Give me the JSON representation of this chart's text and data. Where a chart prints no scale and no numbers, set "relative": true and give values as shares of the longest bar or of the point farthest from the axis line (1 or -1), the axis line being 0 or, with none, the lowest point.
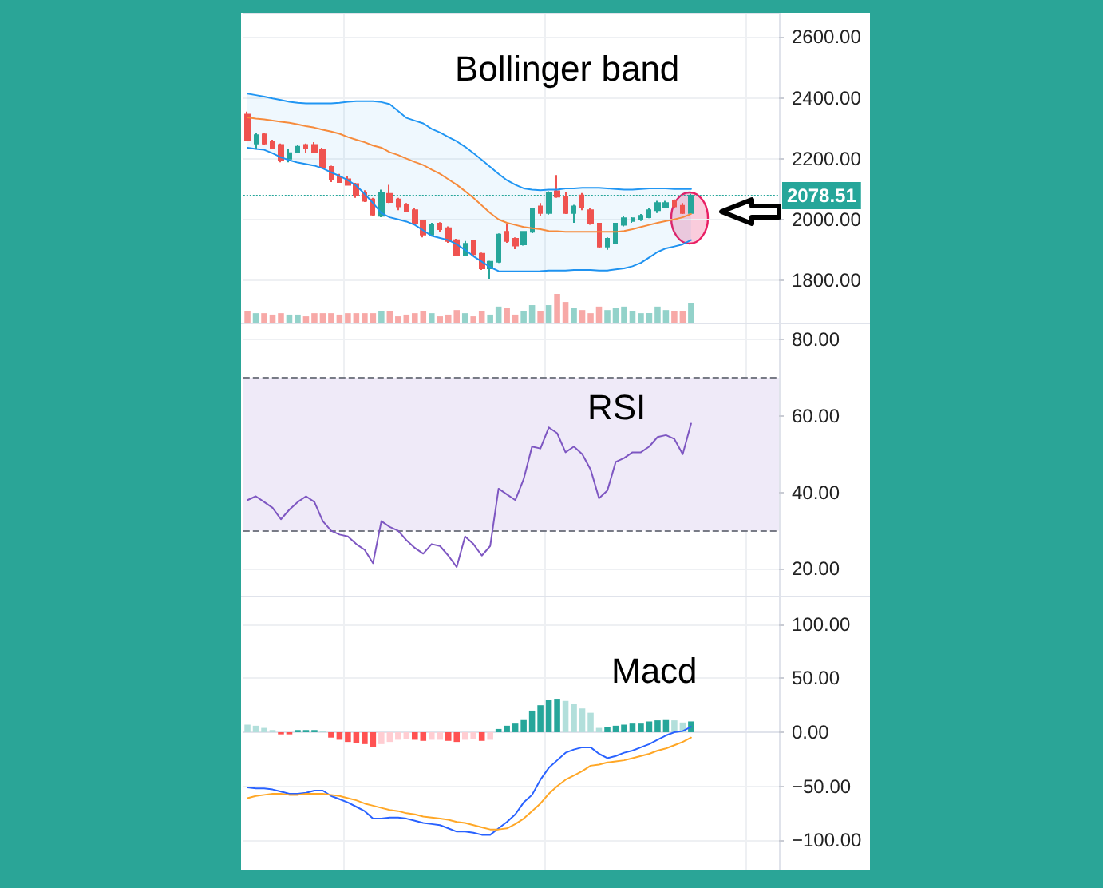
{
  "chart_data": [
    {
      "type": "candlestick",
      "title": "Bollinger band",
      "categories": [
        null,
        null,
        null,
        null,
        null,
        null,
        null,
        null,
        null,
        null,
        null,
        null,
        null,
        null,
        null,
        null,
        null,
        null,
        null,
        null,
        null,
        null,
        null,
        null,
        null,
        null,
        null,
        null,
        null,
        null,
        null,
        null,
        null,
        null,
        null,
        null,
        null,
        null,
        null,
        null,
        null,
        null,
        null,
        null,
        null,
        null,
        null,
        null,
        null,
        null,
        null,
        null,
        null,
        null
      ],
      "ohlc": [
        [
          2345,
          2355,
          2258,
          2262
        ],
        [
          2250,
          2284,
          2232,
          2277
        ],
        [
          2280,
          2286,
          2245,
          2250
        ],
        [
          2257,
          2262,
          2232,
          2236
        ],
        [
          2245,
          2250,
          2188,
          2196
        ],
        [
          2200,
          2232,
          2188,
          2218
        ],
        [
          2221,
          2245,
          2218,
          2239
        ],
        [
          2245,
          2250,
          2218,
          2236
        ],
        [
          2245,
          2254,
          2218,
          2223
        ],
        [
          2230,
          2236,
          2168,
          2170
        ],
        [
          2173,
          2177,
          2123,
          2132
        ],
        [
          2141,
          2150,
          2120,
          2123
        ],
        [
          2132,
          2143,
          2111,
          2114
        ],
        [
          2116,
          2120,
          2071,
          2079
        ],
        [
          2089,
          2096,
          2057,
          2061
        ],
        [
          2066,
          2071,
          2012,
          2016
        ],
        [
          2012,
          2098,
          2007,
          2089
        ],
        [
          2084,
          2114,
          2054,
          2057
        ],
        [
          2066,
          2071,
          2030,
          2043
        ],
        [
          2048,
          2054,
          2025,
          2027
        ],
        [
          2030,
          2039,
          1986,
          1989
        ],
        [
          1995,
          1998,
          1941,
          1950
        ],
        [
          1950,
          1989,
          1945,
          1982
        ],
        [
          1986,
          1991,
          1959,
          1968
        ],
        [
          1971,
          1977,
          1923,
          1929
        ],
        [
          1932,
          1936,
          1879,
          1882
        ],
        [
          1882,
          1929,
          1879,
          1920
        ],
        [
          1929,
          1932,
          1879,
          1886
        ],
        [
          1887,
          1891,
          1834,
          1839
        ],
        [
          1839,
          1864,
          1802,
          1861
        ],
        [
          1861,
          1954,
          1857,
          1950
        ],
        [
          1959,
          1986,
          1923,
          1929
        ],
        [
          1936,
          1941,
          1902,
          1914
        ],
        [
          1918,
          1962,
          1914,
          1959
        ],
        [
          1959,
          2039,
          1955,
          2036
        ],
        [
          2043,
          2054,
          2012,
          2021
        ],
        [
          2021,
          2093,
          2016,
          2087
        ],
        [
          2093,
          2146,
          2071,
          2075
        ],
        [
          2075,
          2089,
          2018,
          2021
        ],
        [
          2021,
          2048,
          1989,
          2043
        ],
        [
          2079,
          2087,
          2030,
          2039
        ],
        [
          2030,
          2036,
          1982,
          1986
        ],
        [
          1986,
          1989,
          1905,
          1911
        ],
        [
          1911,
          1941,
          1900,
          1936
        ],
        [
          1923,
          1989,
          1918,
          1986
        ],
        [
          1982,
          2012,
          1977,
          2004
        ],
        [
          1995,
          2007,
          1989,
          2004
        ],
        [
          2000,
          2018,
          1995,
          2012
        ],
        [
          2007,
          2036,
          2004,
          2030
        ],
        [
          2030,
          2061,
          2021,
          2054
        ],
        [
          2039,
          2061,
          2036,
          2054
        ],
        [
          2061,
          2066,
          2039,
          2043
        ],
        [
          2045,
          2054,
          2018,
          2021
        ],
        [
          2021,
          2084,
          2018,
          2078.51
        ]
      ],
      "colors": [
        "#ef5350",
        "#26a69a",
        "#ef5350",
        "#ef5350",
        "#ef5350",
        "#26a69a",
        "#26a69a",
        "#ef5350",
        "#ef5350",
        "#ef5350",
        "#ef5350",
        "#ef5350",
        "#ef5350",
        "#ef5350",
        "#ef5350",
        "#ef5350",
        "#26a69a",
        "#ef5350",
        "#ef5350",
        "#ef5350",
        "#ef5350",
        "#ef5350",
        "#26a69a",
        "#ef5350",
        "#ef5350",
        "#ef5350",
        "#26a69a",
        "#ef5350",
        "#ef5350",
        "#26a69a",
        "#26a69a",
        "#ef5350",
        "#ef5350",
        "#26a69a",
        "#26a69a",
        "#ef5350",
        "#26a69a",
        "#ef5350",
        "#ef5350",
        "#26a69a",
        "#ef5350",
        "#ef5350",
        "#ef5350",
        "#26a69a",
        "#26a69a",
        "#26a69a",
        "#26a69a",
        "#26a69a",
        "#26a69a",
        "#26a69a",
        "#26a69a",
        "#ef5350",
        "#ef5350",
        "#26a69a"
      ],
      "series": [
        {
          "type": "line",
          "color": "#2196f3",
          "values": [
            2414,
            2409,
            2404,
            2398,
            2393,
            2387,
            2384,
            2382,
            2382,
            2382,
            2382,
            2384,
            2387,
            2389,
            2389,
            2389,
            2386,
            2379,
            2357,
            2334,
            2325,
            2316,
            2298,
            2286,
            2271,
            2257,
            2239,
            2218,
            2196,
            2173,
            2150,
            2129,
            2114,
            2102,
            2098,
            2096,
            2098,
            2098,
            2102,
            2102,
            2104,
            2104,
            2104,
            2102,
            2100,
            2098,
            2098,
            2100,
            2102,
            2102,
            2102,
            2100,
            2100,
            2100
          ]
        },
        {
          "type": "line",
          "color": "#f68b3c",
          "values": [
            2336,
            2332,
            2329,
            2325,
            2321,
            2318,
            2313,
            2307,
            2302,
            2295,
            2289,
            2282,
            2271,
            2262,
            2254,
            2243,
            2236,
            2221,
            2212,
            2200,
            2189,
            2179,
            2164,
            2150,
            2132,
            2114,
            2093,
            2071,
            2046,
            2021,
            2000,
            1989,
            1982,
            1975,
            1971,
            1968,
            1962,
            1961,
            1959,
            1959,
            1959,
            1959,
            1959,
            1959,
            1959,
            1962,
            1968,
            1975,
            1982,
            1989,
            1995,
            2000,
            2007,
            2018
          ],
          "lower": [
            2236,
            2232,
            2229,
            2218,
            2204,
            2195,
            2187,
            2182,
            2177,
            2168,
            2155,
            2143,
            2129,
            2111,
            2084,
            2054,
            2021,
            2007,
            2000,
            1993,
            1982,
            1964,
            1946,
            1939,
            1932,
            1918,
            1900,
            1879,
            1861,
            1843,
            1830,
            1829,
            1829,
            1829,
            1829,
            1830,
            1832,
            1832,
            1832,
            1834,
            1834,
            1834,
            1832,
            1832,
            1836,
            1839,
            1846,
            1857,
            1875,
            1893,
            1905,
            1911,
            1918,
            1932
          ],
          "upper": [
            2414,
            2409,
            2404,
            2398,
            2393,
            2387,
            2384,
            2382,
            2382,
            2382,
            2382,
            2384,
            2387,
            2389,
            2389,
            2389,
            2386,
            2379,
            2357,
            2334,
            2325,
            2316,
            2298,
            2286,
            2271,
            2257,
            2239,
            2218,
            2196,
            2173,
            2150,
            2129,
            2114,
            2102,
            2098,
            2096,
            2098,
            2098,
            2102,
            2102,
            2104,
            2104,
            2104,
            2102,
            2100,
            2098,
            2098,
            2100,
            2102,
            2102,
            2102,
            2100,
            2100,
            2100
          ]
        },
        {
          "type": "line",
          "color": "#1e92f0",
          "values": [
            2236,
            2232,
            2229,
            2218,
            2204,
            2195,
            2187,
            2182,
            2177,
            2168,
            2155,
            2143,
            2129,
            2111,
            2084,
            2054,
            2021,
            2007,
            2000,
            1993,
            1982,
            1964,
            1946,
            1939,
            1932,
            1918,
            1900,
            1879,
            1861,
            1843,
            1830,
            1829,
            1829,
            1829,
            1829,
            1830,
            1832,
            1832,
            1832,
            1834,
            1834,
            1834,
            1832,
            1832,
            1836,
            1839,
            1846,
            1857,
            1875,
            1893,
            1905,
            1911,
            1918,
            1932
          ]
        }
      ],
      "ylim": [
        1755,
        2680
      ],
      "yticks": [
        {
          "value": 1800,
          "label": "1800.00"
        },
        {
          "value": 2000,
          "label": "2000.00"
        },
        {
          "value": 2200,
          "label": "2200.00"
        },
        {
          "value": 2400,
          "label": "2400.00"
        },
        {
          "value": 2600,
          "label": "2600.00"
        }
      ],
      "ref_lines": [
        {
          "axis": "y",
          "value": 2078.51,
          "label": "2078.51",
          "color": "#26a69a",
          "line_style": "dotted"
        }
      ],
      "grid": true,
      "tick_labels": "y"
    },
    {
      "type": "bar",
      "categories": [
        null,
        null,
        null,
        null,
        null,
        null,
        null,
        null,
        null,
        null,
        null,
        null,
        null,
        null,
        null,
        null,
        null,
        null,
        null,
        null,
        null,
        null,
        null,
        null,
        null,
        null,
        null,
        null,
        null,
        null,
        null,
        null,
        null,
        null,
        null,
        null,
        null,
        null,
        null,
        null,
        null,
        null,
        null,
        null,
        null,
        null,
        null,
        null,
        null,
        null,
        null,
        null,
        null,
        null
      ],
      "values": [
        0.39,
        0.33,
        0.33,
        0.28,
        0.33,
        0.28,
        0.28,
        0.22,
        0.33,
        0.33,
        0.33,
        0.28,
        0.33,
        0.33,
        0.33,
        0.33,
        0.39,
        0.39,
        0.22,
        0.28,
        0.33,
        0.39,
        0.33,
        0.22,
        0.28,
        0.44,
        0.33,
        0.22,
        0.39,
        0.28,
        0.56,
        0.5,
        0.28,
        0.39,
        0.61,
        0.39,
        0.61,
        1,
        0.72,
        0.5,
        0.44,
        0.33,
        0.56,
        0.44,
        0.5,
        0.56,
        0.39,
        0.33,
        0.33,
        0.56,
        0.44,
        0.39,
        0.39,
        0.67
      ],
      "colors": [
        "#f7a9a7",
        "#93d2ca",
        "#f7a9a7",
        "#f7a9a7",
        "#f7a9a7",
        "#93d2ca",
        "#93d2ca",
        "#f7a9a7",
        "#f7a9a7",
        "#f7a9a7",
        "#f7a9a7",
        "#f7a9a7",
        "#f7a9a7",
        "#f7a9a7",
        "#f7a9a7",
        "#f7a9a7",
        "#93d2ca",
        "#f7a9a7",
        "#f7a9a7",
        "#f7a9a7",
        "#f7a9a7",
        "#f7a9a7",
        "#93d2ca",
        "#f7a9a7",
        "#f7a9a7",
        "#f7a9a7",
        "#93d2ca",
        "#f7a9a7",
        "#f7a9a7",
        "#93d2ca",
        "#93d2ca",
        "#f7a9a7",
        "#f7a9a7",
        "#93d2ca",
        "#93d2ca",
        "#f7a9a7",
        "#93d2ca",
        "#f7a9a7",
        "#f7a9a7",
        "#93d2ca",
        "#f7a9a7",
        "#f7a9a7",
        "#f7a9a7",
        "#93d2ca",
        "#93d2ca",
        "#93d2ca",
        "#93d2ca",
        "#93d2ca",
        "#93d2ca",
        "#93d2ca",
        "#93d2ca",
        "#f7a9a7",
        "#f7a9a7",
        "#93d2ca"
      ],
      "relative": true,
      "grid": "x",
      "tick_labels": false
    },
    {
      "type": "line",
      "title": "RSI",
      "categories": [
        null,
        null,
        null,
        null,
        null,
        null,
        null,
        null,
        null,
        null,
        null,
        null,
        null,
        null,
        null,
        null,
        null,
        null,
        null,
        null,
        null,
        null,
        null,
        null,
        null,
        null,
        null,
        null,
        null,
        null,
        null,
        null,
        null,
        null,
        null,
        null,
        null,
        null,
        null,
        null,
        null,
        null,
        null,
        null,
        null,
        null,
        null,
        null,
        null,
        null,
        null,
        null,
        null,
        null
      ],
      "series": [
        {
          "color": "#7e57c2",
          "values": [
            38,
            39,
            37.5,
            36,
            33,
            35.5,
            37.5,
            39,
            37.5,
            32.5,
            30,
            29,
            28.5,
            26.5,
            25,
            21.5,
            32.5,
            31,
            30,
            27.5,
            25.5,
            24,
            26.5,
            26,
            23.5,
            20.5,
            28.5,
            26.5,
            23.5,
            26,
            41,
            39.5,
            38,
            43.5,
            52,
            51.5,
            57,
            55.5,
            50.5,
            52,
            50,
            46,
            38.5,
            40.5,
            48,
            49,
            50.5,
            50.5,
            52,
            54.5,
            55,
            54,
            50,
            58
          ]
        }
      ],
      "ylim": [
        13,
        84
      ],
      "yticks": [
        {
          "value": 20,
          "label": "20.00"
        },
        {
          "value": 40,
          "label": "40.00"
        },
        {
          "value": 60,
          "label": "60.00"
        },
        {
          "value": 80,
          "label": "80.00"
        }
      ],
      "bands": [
        {
          "axis": "y",
          "from": 30,
          "to": 70,
          "color": "#efeaf8"
        }
      ],
      "ref_lines": [
        {
          "axis": "y",
          "value": 70,
          "color": "#787b86",
          "line_style": "dashed"
        },
        {
          "axis": "y",
          "value": 30,
          "color": "#787b86",
          "line_style": "dashed"
        }
      ],
      "grid": true,
      "tick_labels": "y"
    },
    {
      "type": "bar",
      "title": "Macd",
      "categories": [
        null,
        null,
        null,
        null,
        null,
        null,
        null,
        null,
        null,
        null,
        null,
        null,
        null,
        null,
        null,
        null,
        null,
        null,
        null,
        null,
        null,
        null,
        null,
        null,
        null,
        null,
        null,
        null,
        null,
        null,
        null,
        null,
        null,
        null,
        null,
        null,
        null,
        null,
        null,
        null,
        null,
        null,
        null,
        null,
        null,
        null,
        null,
        null,
        null,
        null,
        null,
        null,
        null,
        null
      ],
      "series": [
        {
          "colors": [
            "#b2dfdb",
            "#b2dfdb",
            "#b2dfdb",
            "#b2dfdb",
            "#ff5252",
            "#ff5252",
            "#26a69a",
            "#26a69a",
            "#26a69a",
            "#b2dfdb",
            "#ff5252",
            "#ff5252",
            "#ff5252",
            "#ff5252",
            "#ff5252",
            "#ff5252",
            "#ffcdd2",
            "#ffcdd2",
            "#ffcdd2",
            "#ffcdd2",
            "#ff5252",
            "#ff5252",
            "#ffcdd2",
            "#ffcdd2",
            "#ff5252",
            "#ff5252",
            "#ffcdd2",
            "#ffcdd2",
            "#ff5252",
            "#ffcdd2",
            "#26a69a",
            "#26a69a",
            "#26a69a",
            "#26a69a",
            "#26a69a",
            "#26a69a",
            "#26a69a",
            "#26a69a",
            "#b2dfdb",
            "#b2dfdb",
            "#b2dfdb",
            "#b2dfdb",
            "#b2dfdb",
            "#26a69a",
            "#26a69a",
            "#26a69a",
            "#26a69a",
            "#26a69a",
            "#26a69a",
            "#26a69a",
            "#26a69a",
            "#b2dfdb",
            "#b2dfdb",
            "#26a69a"
          ],
          "values": [
            7,
            6,
            4,
            2,
            -2,
            -2,
            2,
            2,
            2,
            1,
            -5,
            -7,
            -9,
            -10,
            -11,
            -14,
            -11,
            -9,
            -7,
            -6,
            -7,
            -8,
            -7,
            -7,
            -8,
            -9,
            -7,
            -6,
            -8,
            -7,
            3,
            6,
            8,
            12,
            20,
            25,
            30,
            31,
            29,
            26,
            22,
            18,
            4,
            5,
            6,
            7,
            8,
            8,
            10,
            11,
            12,
            11,
            9,
            10
          ]
        },
        {
          "type": "line",
          "color": "#2962ff",
          "values": [
            -51,
            -52,
            -52,
            -53,
            -55,
            -57,
            -57,
            -56,
            -54,
            -54,
            -59,
            -62,
            -65,
            -69,
            -73,
            -80,
            -80,
            -79,
            -79,
            -80,
            -82,
            -84,
            -85,
            -86,
            -89,
            -92,
            -92,
            -93,
            -95,
            -95,
            -89,
            -83,
            -76,
            -65,
            -58,
            -44,
            -33,
            -26,
            -19,
            -16,
            -14,
            -14,
            -20,
            -24,
            -22,
            -19,
            -17,
            -14,
            -11,
            -7,
            -3,
            0,
            1,
            5
          ]
        },
        {
          "type": "line",
          "color": "#ffa726",
          "values": [
            -61,
            -59,
            -58,
            -57,
            -57,
            -58,
            -58,
            -57,
            -57,
            -57,
            -58,
            -59,
            -61,
            -63,
            -66,
            -68,
            -70,
            -72,
            -73,
            -75,
            -76,
            -78,
            -79,
            -80,
            -81,
            -83,
            -84,
            -86,
            -88,
            -90,
            -90,
            -89,
            -85,
            -80,
            -73,
            -66,
            -57,
            -50,
            -44,
            -40,
            -36,
            -31,
            -30,
            -28,
            -27,
            -26,
            -24,
            -22,
            -20,
            -17,
            -15,
            -12,
            -9,
            -5
          ]
        }
      ],
      "ylim": [
        -128,
        125
      ],
      "yticks": [
        {
          "value": -100,
          "label": "−100.00"
        },
        {
          "value": -50,
          "label": "−50.00"
        },
        {
          "value": 0,
          "label": "0.00"
        },
        {
          "value": 50,
          "label": "50.00"
        },
        {
          "value": 100,
          "label": "100.00"
        }
      ],
      "grid": true,
      "tick_labels": "y"
    }
  ]
}
